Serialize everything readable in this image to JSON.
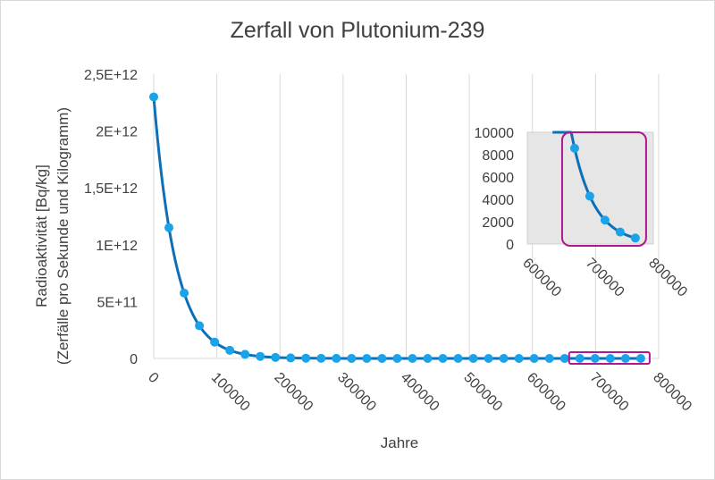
{
  "chart_data": [
    {
      "type": "scatter",
      "title": "Zerfall von Plutonium-239",
      "xlabel": "Jahre",
      "ylabel_lines": [
        "Radioaktivität [Bq/kg]",
        "(Zerfälle pro Sekunde und Kilogramm)"
      ],
      "xlim": [
        0,
        800000
      ],
      "ylim": [
        0,
        2500000000000
      ],
      "x_ticks": [
        0,
        100000,
        200000,
        300000,
        400000,
        500000,
        600000,
        700000,
        800000
      ],
      "x_tick_labels": [
        "0",
        "100000",
        "200000",
        "300000",
        "400000",
        "500000",
        "600000",
        "700000",
        "800000"
      ],
      "y_ticks": [
        0,
        500000000000,
        1000000000000,
        1500000000000,
        2000000000000,
        2500000000000
      ],
      "y_tick_labels": [
        "0",
        "5E+11",
        "1E+12",
        "1,5E+12",
        "2E+12",
        "2,5E+12"
      ],
      "grid": "vertical",
      "smooth_line": true,
      "half_life_years": 24110,
      "series": [
        {
          "color": "#1aa3e8",
          "line_color": "#0d6fb8",
          "points": [
            [
              0,
              2300000000000
            ],
            [
              24110,
              1150000000000
            ],
            [
              48220,
              575000000000
            ],
            [
              72330,
              287500000000
            ],
            [
              96440,
              143750000000
            ],
            [
              120550,
              71875000000
            ],
            [
              144660,
              35937500000
            ],
            [
              168770,
              17968750000
            ],
            [
              192880,
              8984375000
            ],
            [
              216990,
              4492187500
            ],
            [
              241100,
              2246093750
            ],
            [
              265210,
              1123046875
            ],
            [
              289320,
              561523438
            ],
            [
              313430,
              280761719
            ],
            [
              337540,
              140380859
            ],
            [
              361650,
              70190430
            ],
            [
              385760,
              35095215
            ],
            [
              409870,
              17547607
            ],
            [
              433980,
              8773804
            ],
            [
              458090,
              4386902
            ],
            [
              482200,
              2193451
            ],
            [
              506310,
              1096725
            ],
            [
              530420,
              548363
            ],
            [
              554530,
              274181
            ],
            [
              578640,
              137091
            ],
            [
              602750,
              68545
            ],
            [
              626860,
              34273
            ],
            [
              650970,
              17136
            ],
            [
              675080,
              8568
            ],
            [
              699190,
              4284
            ],
            [
              723300,
              2142
            ],
            [
              747410,
              1071
            ],
            [
              771520,
              536
            ]
          ]
        }
      ]
    },
    {
      "type": "scatter",
      "title": "",
      "xlim": [
        600000,
        800000
      ],
      "ylim": [
        0,
        10000
      ],
      "x_ticks": [
        600000,
        700000,
        800000
      ],
      "x_tick_labels": [
        "600000",
        "700000",
        "800000"
      ],
      "y_ticks": [
        0,
        2000,
        4000,
        6000,
        8000,
        10000
      ],
      "y_tick_labels": [
        "0",
        "2000",
        "4000",
        "6000",
        "8000",
        "10000"
      ],
      "series": [
        {
          "color": "#1aa3e8",
          "line_color": "#0d6fb8",
          "points": [
            [
              675080,
              8568
            ],
            [
              699190,
              4284
            ],
            [
              723300,
              2142
            ],
            [
              747410,
              1071
            ],
            [
              771520,
              536
            ]
          ]
        }
      ]
    }
  ],
  "colors": {
    "highlight": "#b0168f",
    "inset_background": "#e6e6e6",
    "grid": "#d9d9d9",
    "text": "#404040"
  }
}
